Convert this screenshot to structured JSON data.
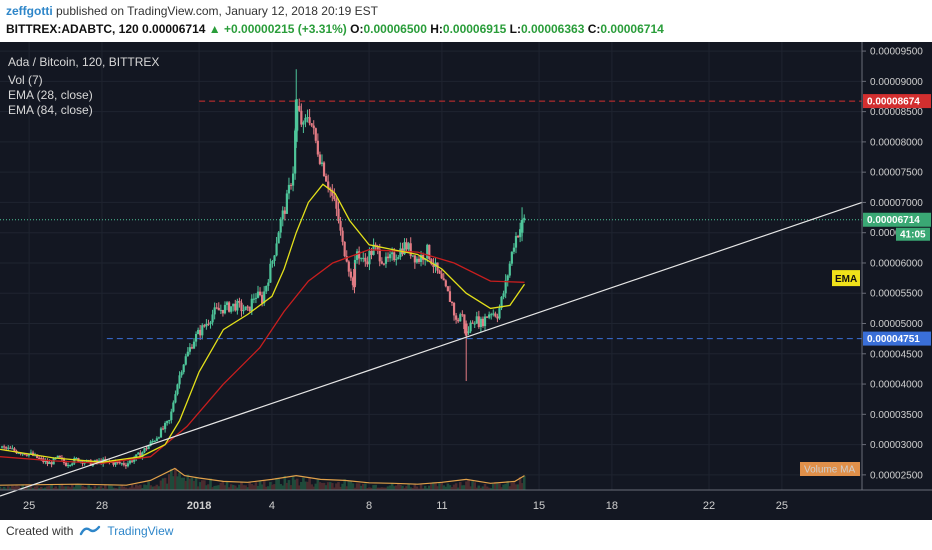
{
  "header": {
    "author": "zeffgotti",
    "published_text": "published on TradingView.com, January 12, 2018 20:19 EST",
    "symbol_line": "BITTREX:ADABTC, 120",
    "last": "0.00006714",
    "change_arrow": "▲",
    "change": "+0.00000215 (+3.31%)",
    "o_label": "O:",
    "o_value": "0.00006500",
    "h_label": "H:",
    "h_value": "0.00006915",
    "l_label": "L:",
    "l_value": "0.00006363",
    "c_label": "C:",
    "c_value": "0.00006714"
  },
  "legend": {
    "pair": "Ada / Bitcoin, 120, BITTREX",
    "vol": "Vol (7)",
    "ema28": "EMA (28, close)",
    "ema84": "EMA (84, close)"
  },
  "footer": {
    "created_with": "Created with",
    "brand": "TradingView"
  },
  "colors": {
    "background": "#131722",
    "up": "#4ec59a",
    "down": "#e37b84",
    "ema28": "#e3e01a",
    "ema84": "#c81e1e",
    "resistance": "#d32f2f",
    "support": "#3a6fd8",
    "trendline": "#e6e6e6",
    "grid": "#1f2430"
  },
  "chart_data": {
    "type": "candlestick",
    "y_ticks": [
      "0.00002500",
      "0.00003000",
      "0.00003500",
      "0.00004000",
      "0.00004500",
      "0.00005000",
      "0.00005500",
      "0.00006000",
      "0.00006500",
      "0.00007000",
      "0.00007500",
      "0.00008000",
      "0.00008500",
      "0.00009000",
      "0.00009500"
    ],
    "ylim": [
      2.25e-05,
      9.65e-05
    ],
    "x_ticks": [
      "25",
      "28",
      "2018",
      "4",
      "8",
      "11",
      "15",
      "18",
      "22",
      "25"
    ],
    "x_tick_days": [
      0,
      3,
      7,
      10,
      14,
      17,
      21,
      24,
      28,
      31
    ],
    "x_range_days": [
      -1.2,
      34.3
    ],
    "close_path": [
      [
        -1.2,
        2.95e-05
      ],
      [
        0,
        2.85e-05
      ],
      [
        0.8,
        2.68e-05
      ],
      [
        1.2,
        2.78e-05
      ],
      [
        1.5,
        2.68e-05
      ],
      [
        2.0,
        2.76e-05
      ],
      [
        2.5,
        2.69e-05
      ],
      [
        3.0,
        2.72e-05
      ],
      [
        4.0,
        2.68e-05
      ],
      [
        4.6,
        2.85e-05
      ],
      [
        5.2,
        3.1e-05
      ],
      [
        5.8,
        3.4e-05
      ],
      [
        6.0,
        3.85e-05
      ],
      [
        6.3,
        4.3e-05
      ],
      [
        6.8,
        4.75e-05
      ],
      [
        7.2,
        4.95e-05
      ],
      [
        7.6,
        5.18e-05
      ],
      [
        8.0,
        5.25e-05
      ],
      [
        8.5,
        5.3e-05
      ],
      [
        9.0,
        5.2e-05
      ],
      [
        9.3,
        5.48e-05
      ],
      [
        9.6,
        5.4e-05
      ],
      [
        10.0,
        6e-05
      ],
      [
        10.3,
        6.6e-05
      ],
      [
        10.6,
        7e-05
      ],
      [
        10.9,
        7.6e-05
      ],
      [
        11.0,
        8.6e-05
      ],
      [
        11.3,
        8.2e-05
      ],
      [
        11.5,
        8.5e-05
      ],
      [
        11.8,
        8e-05
      ],
      [
        12.1,
        7.6e-05
      ],
      [
        12.4,
        7.2e-05
      ],
      [
        12.7,
        6.8e-05
      ],
      [
        12.9,
        6.3e-05
      ],
      [
        13.1,
        6.1e-05
      ],
      [
        13.3,
        5.6e-05
      ],
      [
        13.5,
        6.2e-05
      ],
      [
        13.8,
        6e-05
      ],
      [
        14.2,
        6.25e-05
      ],
      [
        14.7,
        6e-05
      ],
      [
        15.0,
        6.1e-05
      ],
      [
        15.5,
        6.3e-05
      ],
      [
        16.0,
        6.05e-05
      ],
      [
        16.4,
        6.2e-05
      ],
      [
        16.8,
        5.85e-05
      ],
      [
        17.1,
        5.6e-05
      ],
      [
        17.4,
        5.35e-05
      ],
      [
        17.6,
        5e-05
      ],
      [
        17.8,
        5.2e-05
      ],
      [
        18.0,
        4.8e-05
      ],
      [
        18.3,
        5.1e-05
      ],
      [
        18.6,
        5e-05
      ],
      [
        19.0,
        5.2e-05
      ],
      [
        19.3,
        5.15e-05
      ],
      [
        19.6,
        5.6e-05
      ],
      [
        20.0,
        6.4e-05
      ],
      [
        20.4,
        6.72e-05
      ]
    ],
    "candles": [
      {
        "x": 11.0,
        "open": 8e-05,
        "high": 9.2e-05,
        "low": 7.9e-05,
        "close": 8.7e-05
      },
      {
        "x": 13.4,
        "open": 5.9e-05,
        "high": 6e-05,
        "low": 5.5e-05,
        "close": 5.6e-05
      },
      {
        "x": 18.0,
        "open": 5e-05,
        "high": 5.05e-05,
        "low": 4.05e-05,
        "close": 4.8e-05
      },
      {
        "x": 20.3,
        "open": 6.5e-05,
        "high": 6.92e-05,
        "low": 6.36e-05,
        "close": 6.71e-05
      }
    ],
    "ema28": [
      [
        -1.2,
        2.92e-05
      ],
      [
        1.0,
        2.78e-05
      ],
      [
        3.0,
        2.71e-05
      ],
      [
        4.6,
        2.8e-05
      ],
      [
        5.6,
        3e-05
      ],
      [
        6.2,
        3.4e-05
      ],
      [
        7.0,
        4.2e-05
      ],
      [
        8.0,
        4.9e-05
      ],
      [
        9.0,
        5.15e-05
      ],
      [
        10.0,
        5.45e-05
      ],
      [
        10.5,
        5.9e-05
      ],
      [
        11.0,
        6.5e-05
      ],
      [
        11.5,
        7e-05
      ],
      [
        12.1,
        7.3e-05
      ],
      [
        12.6,
        7.15e-05
      ],
      [
        13.2,
        6.7e-05
      ],
      [
        14.0,
        6.3e-05
      ],
      [
        15.0,
        6.22e-05
      ],
      [
        16.0,
        6.14e-05
      ],
      [
        17.0,
        5.9e-05
      ],
      [
        18.0,
        5.5e-05
      ],
      [
        19.0,
        5.25e-05
      ],
      [
        19.8,
        5.3e-05
      ],
      [
        20.4,
        5.65e-05
      ]
    ],
    "ema84": [
      [
        -1.2,
        2.8e-05
      ],
      [
        1.0,
        2.73e-05
      ],
      [
        3.0,
        2.69e-05
      ],
      [
        5.0,
        2.8e-05
      ],
      [
        6.5,
        3.3e-05
      ],
      [
        8.0,
        4e-05
      ],
      [
        9.5,
        4.6e-05
      ],
      [
        10.5,
        5.2e-05
      ],
      [
        11.5,
        5.7e-05
      ],
      [
        12.5,
        6e-05
      ],
      [
        14.0,
        6.22e-05
      ],
      [
        16.0,
        6.18e-05
      ],
      [
        17.5,
        6e-05
      ],
      [
        19.0,
        5.7e-05
      ],
      [
        20.4,
        5.68e-05
      ]
    ],
    "volume": [
      [
        -1.2,
        0.1
      ],
      [
        2.0,
        0.12
      ],
      [
        4.0,
        0.1
      ],
      [
        5.0,
        0.2
      ],
      [
        6.0,
        0.45
      ],
      [
        6.4,
        0.3
      ],
      [
        7.0,
        0.25
      ],
      [
        8.0,
        0.18
      ],
      [
        9.0,
        0.16
      ],
      [
        10.0,
        0.22
      ],
      [
        11.0,
        0.3
      ],
      [
        12.0,
        0.22
      ],
      [
        13.0,
        0.2
      ],
      [
        14.0,
        0.15
      ],
      [
        15.0,
        0.14
      ],
      [
        16.0,
        0.12
      ],
      [
        17.0,
        0.16
      ],
      [
        18.0,
        0.22
      ],
      [
        19.0,
        0.14
      ],
      [
        20.0,
        0.18
      ],
      [
        20.4,
        0.3
      ]
    ],
    "resistance_level": "0.00008674",
    "support_level": "0.00004751",
    "current_price": "0.00006714",
    "price_tag_sub": "41:05",
    "trendline": [
      [
        -1.2,
        2.15e-05
      ],
      [
        34.3,
        7e-05
      ]
    ],
    "ema_label": "EMA",
    "volume_ma_label": "Volume MA",
    "grid": true
  }
}
